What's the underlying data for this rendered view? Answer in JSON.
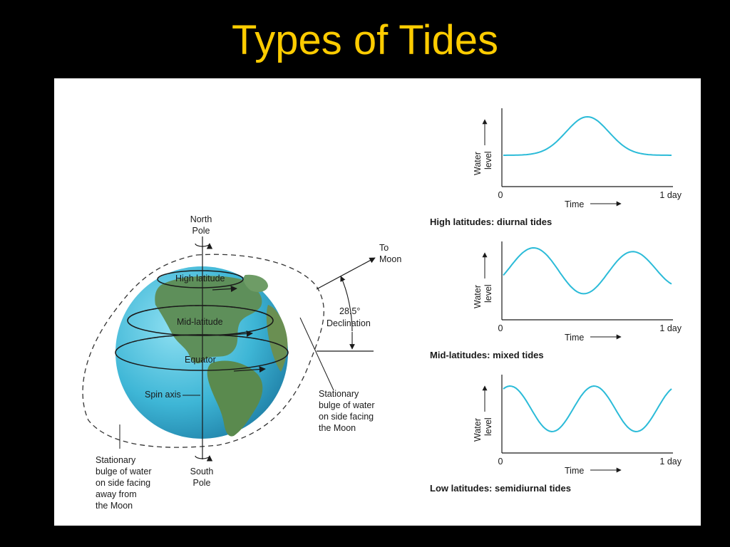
{
  "slide": {
    "title": "Types of Tides"
  },
  "colors": {
    "background": "#000000",
    "title": "#FFCC00",
    "panel": "#FFFFFF",
    "ocean": "#3EB6D6",
    "land": "#5E8F5A",
    "curve": "#2BBBD8"
  },
  "globe": {
    "north_pole_line1": "North",
    "north_pole_line2": "Pole",
    "south_pole_line1": "South",
    "south_pole_line2": "Pole",
    "high_latitude": "High latitude",
    "mid_latitude": "Mid-latitude",
    "equator": "Equator",
    "spin_axis": "Spin axis",
    "to_moon_line1": "To",
    "to_moon_line2": "Moon",
    "declination_value": "28.5°",
    "declination_label": "Declination",
    "bulge_near_line1": "Stationary",
    "bulge_near_line2": "bulge of water",
    "bulge_near_line3": "on side facing",
    "bulge_near_line4": "the Moon",
    "bulge_far_line1": "Stationary",
    "bulge_far_line2": "bulge of water",
    "bulge_far_line3": "on side facing",
    "bulge_far_line4": "away from",
    "bulge_far_line5": "the Moon"
  },
  "graphs": [
    {
      "caption": "High latitudes: diurnal tides",
      "ylabel_line1": "Water",
      "ylabel_line2": "level",
      "xlabel": "Time",
      "x_start": "0",
      "x_end": "1 day"
    },
    {
      "caption": "Mid-latitudes: mixed tides",
      "ylabel_line1": "Water",
      "ylabel_line2": "level",
      "xlabel": "Time",
      "x_start": "0",
      "x_end": "1 day"
    },
    {
      "caption": "Low latitudes: semidiurnal tides",
      "ylabel_line1": "Water",
      "ylabel_line2": "level",
      "xlabel": "Time",
      "x_start": "0",
      "x_end": "1 day"
    }
  ]
}
